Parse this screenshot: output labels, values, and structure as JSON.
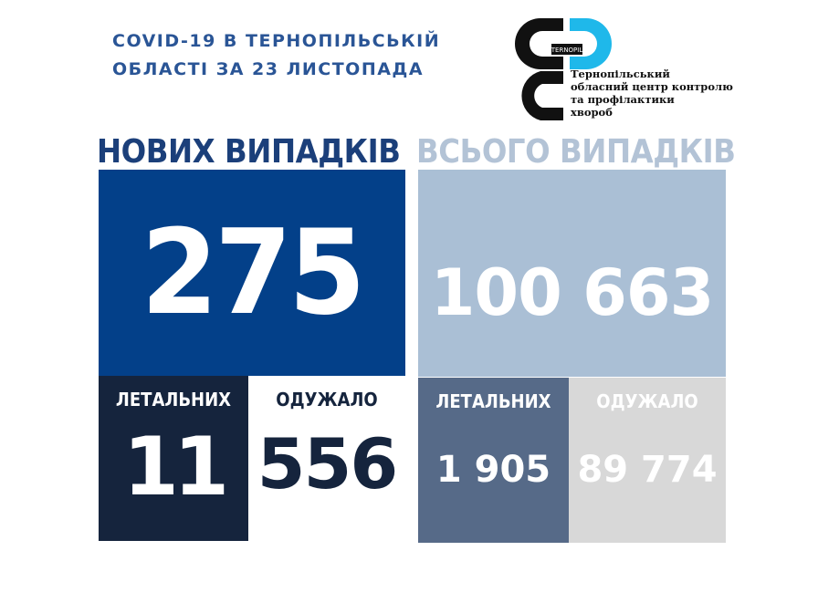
{
  "title": {
    "line1": "COVID-19 В ТЕРНОПІЛЬСЬКІЙ",
    "line2": "ОБЛАСТІ ЗА 23 ЛИСТОПАДА"
  },
  "logo": {
    "badge": "TERNOPIL",
    "org_lines": [
      "Тернопільський",
      "обласний центр контролю",
      "та профілактики",
      "хвороб"
    ]
  },
  "new_cases": {
    "heading": "НОВИХ ВИПАДКІВ",
    "count": "275",
    "deaths_label": "ЛЕТАЛЬНИХ",
    "deaths": "11",
    "recovered_label": "ОДУЖАЛО",
    "recovered": "556"
  },
  "total_cases": {
    "heading": "ВСЬОГО ВИПАДКІВ",
    "count": "100 663",
    "deaths_label": "ЛЕТАЛЬНИХ",
    "deaths": "1 905",
    "recovered_label": "ОДУЖАЛО",
    "recovered": "89 774"
  },
  "colors": {
    "new_blue": "#034089",
    "total_light": "#aabfd5",
    "dark_navy": "#15243d",
    "slate": "#566a88",
    "grey": "#d8d8d8",
    "logo_cyan": "#1fb8ea"
  }
}
